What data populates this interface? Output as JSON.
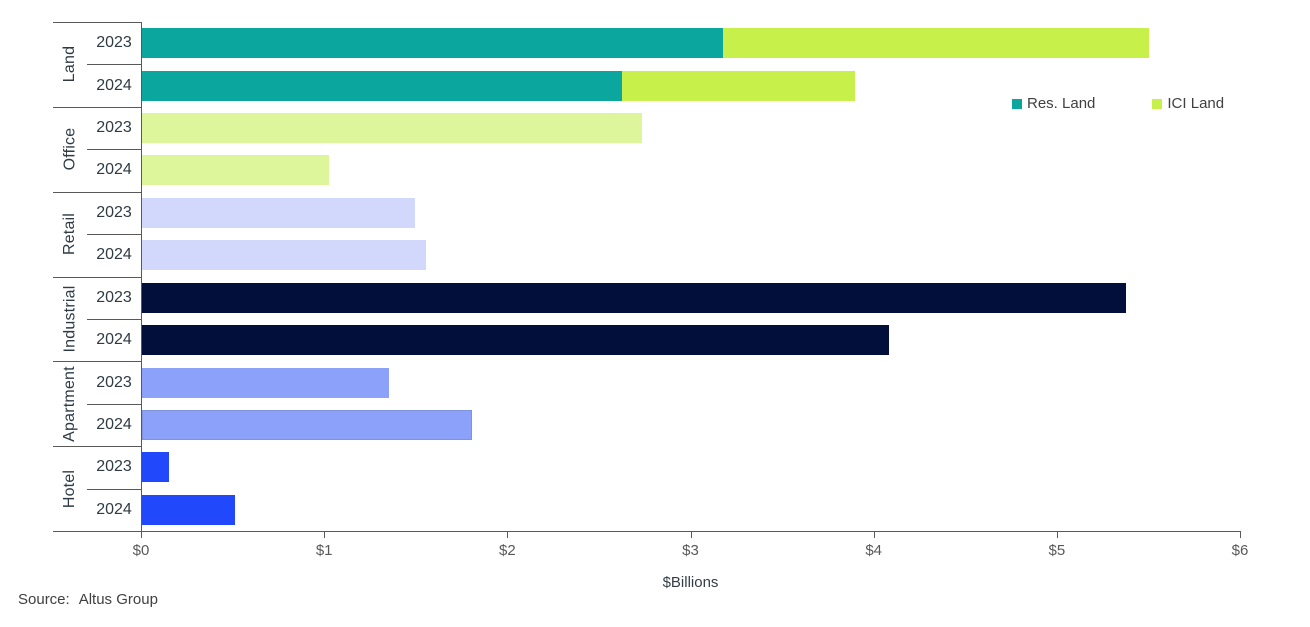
{
  "chart_data": {
    "type": "bar",
    "orientation": "horizontal",
    "title": "",
    "xlabel": "$Billions",
    "ylabel": "",
    "xlim": [
      0,
      6
    ],
    "grid": false,
    "legend_position": "right-of-land-rows",
    "xticks": [
      {
        "value": 0,
        "label": "$0"
      },
      {
        "value": 1,
        "label": "$1"
      },
      {
        "value": 2,
        "label": "$2"
      },
      {
        "value": 3,
        "label": "$3"
      },
      {
        "value": 4,
        "label": "$4"
      },
      {
        "value": 5,
        "label": "$5"
      },
      {
        "value": 6,
        "label": "$6"
      }
    ],
    "legend_items": [
      {
        "name": "Res. Land",
        "color": "#0BA69E"
      },
      {
        "name": "ICI Land",
        "color": "#C8F04A"
      }
    ],
    "units": "$Billions",
    "groups": [
      {
        "category": "Land",
        "rows": [
          {
            "year": "2023",
            "segments": [
              {
                "name": "Res. Land",
                "value": 3.17,
                "color": "#0BA69E"
              },
              {
                "name": "ICI Land",
                "value": 2.33,
                "color": "#C8F04A"
              }
            ]
          },
          {
            "year": "2024",
            "segments": [
              {
                "name": "Res. Land",
                "value": 2.62,
                "color": "#0BA69E"
              },
              {
                "name": "ICI Land",
                "value": 1.27,
                "color": "#C8F04A"
              }
            ]
          }
        ]
      },
      {
        "category": "Office",
        "rows": [
          {
            "year": "2023",
            "segments": [
              {
                "name": "Office",
                "value": 2.73,
                "color": "#DDF59B"
              }
            ]
          },
          {
            "year": "2024",
            "segments": [
              {
                "name": "Office",
                "value": 1.02,
                "color": "#DDF59B"
              }
            ]
          }
        ]
      },
      {
        "category": "Retail",
        "rows": [
          {
            "year": "2023",
            "segments": [
              {
                "name": "Retail",
                "value": 1.49,
                "color": "#D2D8FB"
              }
            ]
          },
          {
            "year": "2024",
            "segments": [
              {
                "name": "Retail",
                "value": 1.55,
                "color": "#D2D8FB"
              }
            ]
          }
        ]
      },
      {
        "category": "Industrial",
        "rows": [
          {
            "year": "2023",
            "segments": [
              {
                "name": "Industrial",
                "value": 5.37,
                "color": "#020F3B"
              }
            ]
          },
          {
            "year": "2024",
            "segments": [
              {
                "name": "Industrial",
                "value": 4.08,
                "color": "#020F3B"
              }
            ]
          }
        ]
      },
      {
        "category": "Apartment",
        "rows": [
          {
            "year": "2023",
            "segments": [
              {
                "name": "Apartment",
                "value": 1.35,
                "color": "#8CA2FA"
              }
            ]
          },
          {
            "year": "2024",
            "segments": [
              {
                "name": "Apartment",
                "value": 1.8,
                "color": "#8CA2FA",
                "outline": "#7E93DC"
              }
            ]
          }
        ]
      },
      {
        "category": "Hotel",
        "rows": [
          {
            "year": "2023",
            "segments": [
              {
                "name": "Hotel",
                "value": 0.15,
                "color": "#2148FB"
              }
            ]
          },
          {
            "year": "2024",
            "segments": [
              {
                "name": "Hotel",
                "value": 0.51,
                "color": "#2148FB"
              }
            ]
          }
        ]
      }
    ]
  },
  "source": {
    "label": "Source:",
    "name": "Altus Group"
  }
}
